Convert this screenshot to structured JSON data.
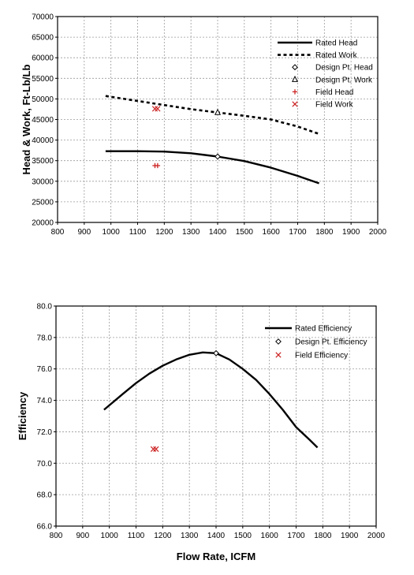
{
  "chart_data": [
    {
      "type": "line",
      "title": "",
      "xlabel": "",
      "ylabel": "Head & Work, Ft-Lb/Lb",
      "xlim": [
        800,
        2000
      ],
      "ylim": [
        20000,
        70000
      ],
      "xticks": [
        "800",
        "900",
        "1000",
        "1100",
        "1200",
        "1300",
        "1400",
        "1500",
        "1600",
        "1700",
        "1800",
        "1900",
        "2000"
      ],
      "yticks": [
        "20000",
        "25000",
        "30000",
        "35000",
        "40000",
        "45000",
        "50000",
        "55000",
        "60000",
        "65000",
        "70000"
      ],
      "grid": true,
      "legend_position": "top-right",
      "series": [
        {
          "name": "Rated Head",
          "style": "solid",
          "color": "#000000",
          "x": [
            980,
            1100,
            1200,
            1300,
            1400,
            1500,
            1600,
            1700,
            1780
          ],
          "y": [
            37300,
            37300,
            37200,
            36800,
            36000,
            34900,
            33300,
            31300,
            29500
          ]
        },
        {
          "name": "Rated Work",
          "style": "dotted",
          "color": "#000000",
          "x": [
            980,
            1100,
            1200,
            1300,
            1400,
            1500,
            1600,
            1700,
            1780
          ],
          "y": [
            50700,
            49500,
            48500,
            47500,
            46700,
            45900,
            45000,
            43300,
            41500
          ]
        },
        {
          "name": "Design Pt. Head",
          "style": "marker",
          "marker": "diamond",
          "color": "#000000",
          "x": [
            1400
          ],
          "y": [
            36000
          ]
        },
        {
          "name": "Design Pt. Work",
          "style": "marker",
          "marker": "triangle",
          "color": "#000000",
          "x": [
            1400
          ],
          "y": [
            46700
          ]
        },
        {
          "name": "Field Head",
          "style": "marker",
          "marker": "plus",
          "color": "#cc2222",
          "x": [
            1165,
            1175
          ],
          "y": [
            33800,
            33800
          ]
        },
        {
          "name": "Field Work",
          "style": "marker",
          "marker": "cross",
          "color": "#cc2222",
          "x": [
            1165,
            1175
          ],
          "y": [
            47600,
            47600
          ]
        }
      ]
    },
    {
      "type": "line",
      "title": "",
      "xlabel": "Flow Rate, ICFM",
      "ylabel": "Efficiency",
      "xlim": [
        800,
        2000
      ],
      "ylim": [
        66,
        80
      ],
      "xticks": [
        "800",
        "900",
        "1000",
        "1100",
        "1200",
        "1300",
        "1400",
        "1500",
        "1600",
        "1700",
        "1800",
        "1900",
        "2000"
      ],
      "yticks": [
        "66.0",
        "68.0",
        "70.0",
        "72.0",
        "74.0",
        "76.0",
        "78.0",
        "80.0"
      ],
      "grid": true,
      "legend_position": "top-right",
      "series": [
        {
          "name": "Rated Efficiency",
          "style": "solid",
          "color": "#000000",
          "x": [
            980,
            1050,
            1100,
            1150,
            1200,
            1250,
            1300,
            1350,
            1400,
            1450,
            1500,
            1550,
            1600,
            1650,
            1700,
            1750,
            1780
          ],
          "y": [
            73.4,
            74.4,
            75.1,
            75.7,
            76.2,
            76.6,
            76.9,
            77.05,
            77.0,
            76.6,
            76.0,
            75.3,
            74.4,
            73.4,
            72.3,
            71.5,
            71.0
          ]
        },
        {
          "name": "Design Pt. Efficiency",
          "style": "marker",
          "marker": "diamond",
          "color": "#000000",
          "x": [
            1400
          ],
          "y": [
            77.0
          ]
        },
        {
          "name": "Field Efficiency",
          "style": "marker",
          "marker": "cross",
          "color": "#cc2222",
          "x": [
            1165,
            1175
          ],
          "y": [
            70.9,
            70.9
          ]
        }
      ]
    }
  ]
}
